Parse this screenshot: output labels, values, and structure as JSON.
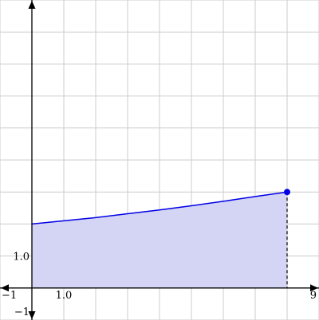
{
  "chart_data": {
    "type": "area",
    "title": "",
    "xlabel": "",
    "ylabel": "",
    "xlim": [
      -1,
      9
    ],
    "ylim": [
      -1,
      9
    ],
    "grid": true,
    "grid_step": 1,
    "tick_labels": {
      "x": [
        {
          "value": -1,
          "text": "−1"
        },
        {
          "value": 1,
          "text": "1.0"
        },
        {
          "value": 9,
          "text": "9"
        }
      ],
      "y": [
        {
          "value": 1,
          "text": "1.0"
        },
        {
          "value": -1,
          "text": "−1"
        }
      ]
    },
    "series": [
      {
        "x": [
          0,
          1,
          2,
          3,
          4,
          5,
          6,
          7,
          8
        ],
        "y": [
          2.0,
          2.1,
          2.2,
          2.32,
          2.44,
          2.57,
          2.71,
          2.86,
          3.0
        ]
      }
    ],
    "endpoint": {
      "x": 8,
      "y": 3.0
    },
    "fill_between": {
      "from": 0,
      "to": 8
    },
    "colors": {
      "curve": "#0000e6",
      "fill": "#d4d4f4",
      "grid": "#cccccc",
      "axis": "#000000"
    }
  }
}
